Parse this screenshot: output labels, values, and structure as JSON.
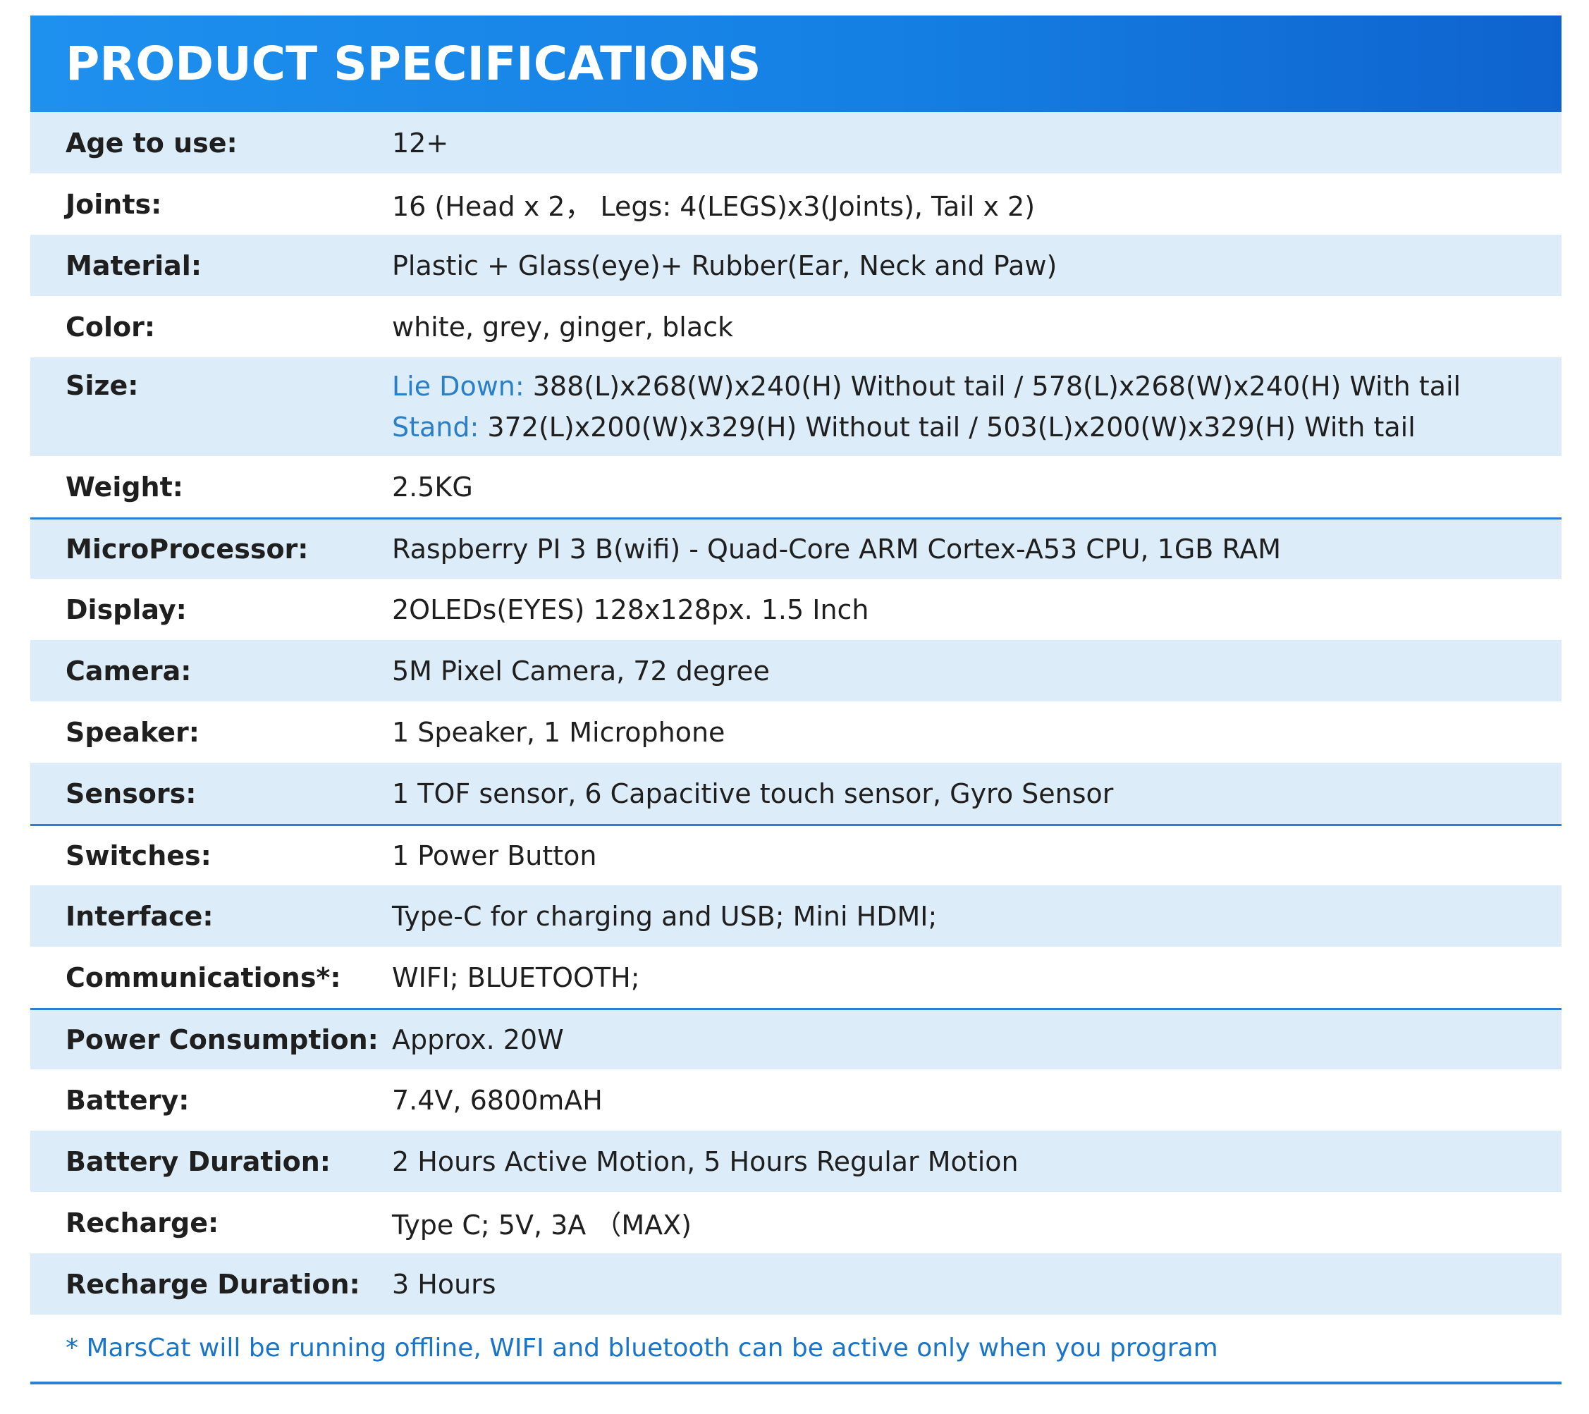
{
  "header": {
    "title": "PRODUCT SPECIFICATIONS"
  },
  "colors": {
    "header_blue": "#1580e4",
    "row_shade": "#dcecf8",
    "accent_blue": "#2a7fc9",
    "divider_blue": "#2b7fd6"
  },
  "specs": {
    "age": {
      "label": "Age to use:",
      "value": "12+"
    },
    "joints": {
      "label": "Joints:",
      "value": "16 (Head x 2， Legs: 4(LEGS)x3(Joints), Tail x 2)"
    },
    "material": {
      "label": "Material:",
      "value": "Plastic + Glass(eye)+ Rubber(Ear, Neck and Paw)"
    },
    "color": {
      "label": "Color:",
      "value": "white, grey, ginger, black"
    },
    "size": {
      "label": "Size:",
      "lie_down_tag": "Lie Down:",
      "lie_down_value": " 388(L)x268(W)x240(H) Without tail  /  578(L)x268(W)x240(H) With tail",
      "stand_tag": "Stand:",
      "stand_value": " 372(L)x200(W)x329(H) Without tail  /   503(L)x200(W)x329(H) With tail"
    },
    "weight": {
      "label": "Weight:",
      "value": "2.5KG"
    },
    "microprocessor": {
      "label": "MicroProcessor:",
      "value": "Raspberry  PI 3 B(wifi) - Quad-Core ARM Cortex-A53 CPU, 1GB RAM"
    },
    "display": {
      "label": "Display:",
      "value": "2OLEDs(EYES) 128x128px. 1.5 Inch"
    },
    "camera": {
      "label": "Camera:",
      "value": "5M Pixel Camera, 72 degree"
    },
    "speaker": {
      "label": "Speaker:",
      "value": "1 Speaker, 1 Microphone"
    },
    "sensors": {
      "label": "Sensors:",
      "value": "1 TOF sensor, 6 Capacitive touch sensor, Gyro Sensor"
    },
    "switches": {
      "label": "Switches:",
      "value": "1 Power Button"
    },
    "interface": {
      "label": "Interface:",
      "value": "Type-C for charging and USB;  Mini HDMI;"
    },
    "communications": {
      "label": "Communications*:",
      "value": "WIFI; BLUETOOTH;"
    },
    "power": {
      "label": "Power Consumption:",
      "value": "Approx. 20W"
    },
    "battery": {
      "label": "Battery:",
      "value": "7.4V, 6800mAH"
    },
    "battery_duration": {
      "label": "Battery Duration:",
      "value": "2 Hours Active Motion, 5 Hours Regular Motion"
    },
    "recharge": {
      "label": "Recharge:",
      "value": "Type C; 5V, 3A （MAX)"
    },
    "recharge_duration": {
      "label": "Recharge Duration:",
      "value": "3 Hours"
    }
  },
  "footnote": "* MarsCat will be running offline, WIFI and bluetooth can be active only when you program"
}
